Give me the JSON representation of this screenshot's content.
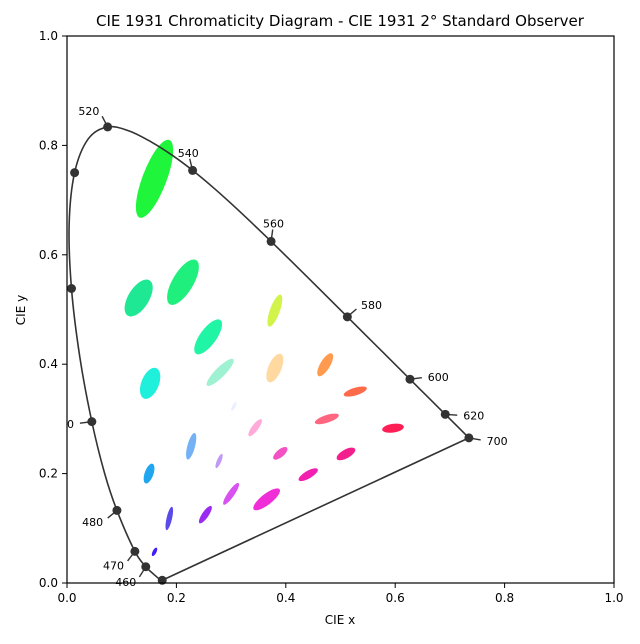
{
  "chart_data": {
    "type": "scatter",
    "title": "CIE 1931 Chromaticity Diagram - CIE 1931 2° Standard Observer",
    "xlabel": "CIE x",
    "ylabel": "CIE y",
    "xlim": [
      0,
      1
    ],
    "ylim": [
      0,
      1
    ],
    "xticks": [
      "0.0",
      "0.2",
      "0.4",
      "0.6",
      "0.8",
      "1.0"
    ],
    "yticks": [
      "0.0",
      "0.2",
      "0.4",
      "0.6",
      "0.8",
      "1.0"
    ],
    "grid": false,
    "spectral_locus": [
      [
        0.1741,
        0.005
      ],
      [
        0.1738,
        0.0049
      ],
      [
        0.1714,
        0.0051
      ],
      [
        0.1689,
        0.0069
      ],
      [
        0.1644,
        0.0109
      ],
      [
        0.1566,
        0.0177
      ],
      [
        0.144,
        0.0297
      ],
      [
        0.1241,
        0.0578
      ],
      [
        0.0913,
        0.1327
      ],
      [
        0.0687,
        0.2007
      ],
      [
        0.0454,
        0.295
      ],
      [
        0.0235,
        0.4127
      ],
      [
        0.0082,
        0.5384
      ],
      [
        0.0039,
        0.6548
      ],
      [
        0.0139,
        0.7502
      ],
      [
        0.0389,
        0.812
      ],
      [
        0.0743,
        0.8338
      ],
      [
        0.1142,
        0.8262
      ],
      [
        0.1547,
        0.8059
      ],
      [
        0.1929,
        0.7816
      ],
      [
        0.2296,
        0.7543
      ],
      [
        0.2658,
        0.7243
      ],
      [
        0.3016,
        0.6923
      ],
      [
        0.3373,
        0.6589
      ],
      [
        0.3731,
        0.6245
      ],
      [
        0.4087,
        0.5896
      ],
      [
        0.4441,
        0.5547
      ],
      [
        0.4788,
        0.5202
      ],
      [
        0.5125,
        0.4866
      ],
      [
        0.5448,
        0.4544
      ],
      [
        0.5752,
        0.4242
      ],
      [
        0.6029,
        0.3965
      ],
      [
        0.627,
        0.3725
      ],
      [
        0.6482,
        0.3514
      ],
      [
        0.6658,
        0.334
      ],
      [
        0.6915,
        0.3083
      ],
      [
        0.7147,
        0.2853
      ],
      [
        0.7347,
        0.2653
      ],
      [
        0.1741,
        0.005
      ]
    ],
    "wavelength_markers": [
      {
        "label": "460",
        "x": 0.144,
        "y": 0.0297
      },
      {
        "label": "470",
        "x": 0.1241,
        "y": 0.0578
      },
      {
        "label": "480",
        "x": 0.0913,
        "y": 0.1327
      },
      {
        "label": "0",
        "x": 0.0454,
        "y": 0.295
      },
      {
        "label": "",
        "x": 0.0082,
        "y": 0.5384
      },
      {
        "label": "",
        "x": 0.0139,
        "y": 0.7502
      },
      {
        "label": "520",
        "x": 0.0743,
        "y": 0.8338
      },
      {
        "label": "540",
        "x": 0.2296,
        "y": 0.7543
      },
      {
        "label": "560",
        "x": 0.3731,
        "y": 0.6245
      },
      {
        "label": "580",
        "x": 0.5125,
        "y": 0.4866
      },
      {
        "label": "600",
        "x": 0.627,
        "y": 0.3725
      },
      {
        "label": "620",
        "x": 0.6915,
        "y": 0.3083
      },
      {
        "label": "700",
        "x": 0.7347,
        "y": 0.2653
      },
      {
        "label": "",
        "x": 0.1741,
        "y": 0.005
      }
    ],
    "ellipses": [
      {
        "x": 0.16,
        "y": 0.057,
        "a": 0.0085,
        "b": 0.0035,
        "angle": 62.5,
        "color": "#3f1ff5"
      },
      {
        "x": 0.187,
        "y": 0.118,
        "a": 0.022,
        "b": 0.005,
        "angle": 77.0,
        "color": "#5a4be8"
      },
      {
        "x": 0.253,
        "y": 0.125,
        "a": 0.019,
        "b": 0.006,
        "angle": 55.5,
        "color": "#9a2cf2"
      },
      {
        "x": 0.15,
        "y": 0.2,
        "a": 0.019,
        "b": 0.008,
        "angle": 70.5,
        "color": "#1fa6ee"
      },
      {
        "x": 0.131,
        "y": 0.521,
        "a": 0.038,
        "b": 0.019,
        "angle": 58.2,
        "color": "#1fe895"
      },
      {
        "x": 0.212,
        "y": 0.55,
        "a": 0.047,
        "b": 0.019,
        "angle": 59.1,
        "color": "#1ff07d"
      },
      {
        "x": 0.258,
        "y": 0.45,
        "a": 0.038,
        "b": 0.015,
        "angle": 54.0,
        "color": "#1ff5a4"
      },
      {
        "x": 0.152,
        "y": 0.365,
        "a": 0.03,
        "b": 0.016,
        "angle": 68.0,
        "color": "#1ff0dc"
      },
      {
        "x": 0.28,
        "y": 0.385,
        "a": 0.034,
        "b": 0.009,
        "angle": 45.0,
        "color": "#9ef2d2"
      },
      {
        "x": 0.38,
        "y": 0.498,
        "a": 0.031,
        "b": 0.009,
        "angle": 70.0,
        "color": "#d2f44a"
      },
      {
        "x": 0.16,
        "y": 0.739,
        "a": 0.076,
        "b": 0.022,
        "angle": 69.1,
        "color": "#1ff53b"
      },
      {
        "x": 0.305,
        "y": 0.323,
        "a": 0.009,
        "b": 0.003,
        "angle": 63.0,
        "color": "#eaf0ff"
      },
      {
        "x": 0.38,
        "y": 0.393,
        "a": 0.028,
        "b": 0.012,
        "angle": 67.0,
        "color": "#ffd9a0"
      },
      {
        "x": 0.472,
        "y": 0.399,
        "a": 0.024,
        "b": 0.009,
        "angle": 59.0,
        "color": "#ff9a4f"
      },
      {
        "x": 0.527,
        "y": 0.35,
        "a": 0.022,
        "b": 0.007,
        "angle": 17.0,
        "color": "#ff6a4a"
      },
      {
        "x": 0.475,
        "y": 0.3,
        "a": 0.023,
        "b": 0.007,
        "angle": 18.0,
        "color": "#ff6680"
      },
      {
        "x": 0.51,
        "y": 0.236,
        "a": 0.019,
        "b": 0.008,
        "angle": 29.0,
        "color": "#f21f8c"
      },
      {
        "x": 0.596,
        "y": 0.283,
        "a": 0.02,
        "b": 0.008,
        "angle": 8.0,
        "color": "#ff1f56"
      },
      {
        "x": 0.344,
        "y": 0.284,
        "a": 0.019,
        "b": 0.006,
        "angle": 53.0,
        "color": "#ffaad8"
      },
      {
        "x": 0.39,
        "y": 0.237,
        "a": 0.016,
        "b": 0.007,
        "angle": 40.0,
        "color": "#f252c2"
      },
      {
        "x": 0.441,
        "y": 0.198,
        "a": 0.02,
        "b": 0.007,
        "angle": 30.0,
        "color": "#f21fb0"
      },
      {
        "x": 0.278,
        "y": 0.223,
        "a": 0.014,
        "b": 0.004,
        "angle": 67.0,
        "color": "#c099f5"
      },
      {
        "x": 0.3,
        "y": 0.163,
        "a": 0.024,
        "b": 0.006,
        "angle": 55.0,
        "color": "#d852f0"
      },
      {
        "x": 0.365,
        "y": 0.153,
        "a": 0.03,
        "b": 0.01,
        "angle": 38.0,
        "color": "#f02ed8"
      },
      {
        "x": 0.227,
        "y": 0.25,
        "a": 0.025,
        "b": 0.007,
        "angle": 75.0,
        "color": "#74b2f5"
      }
    ]
  }
}
